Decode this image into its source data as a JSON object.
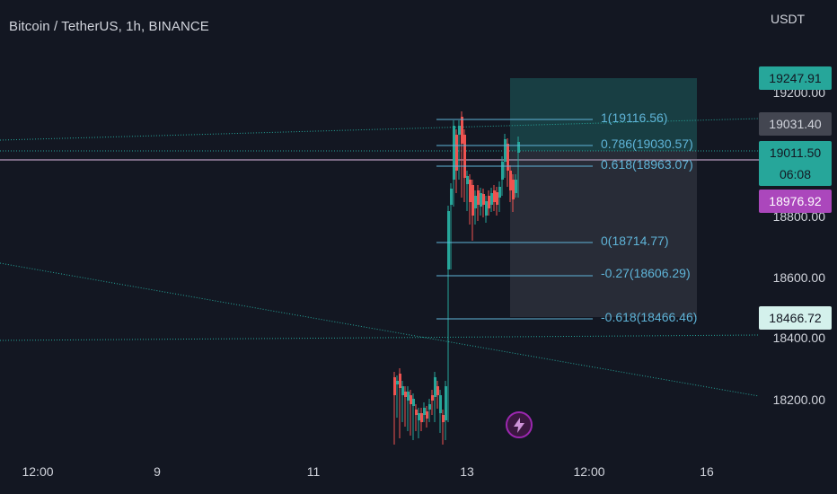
{
  "header": {
    "symbol_line": "Bitcoin / TetherUS, 1h, BINANCE"
  },
  "price_axis": {
    "currency": "USDT",
    "labels": [
      "19200.00",
      "18800.00",
      "18600.00",
      "18400.00",
      "18200.00"
    ]
  },
  "price_tags": [
    {
      "value": "19247.91",
      "color": "#26a69a",
      "text_color": "#131722"
    },
    {
      "value": "19031.40",
      "color": "#434651",
      "text_color": "#d1d4dc"
    },
    {
      "value": "19011.50",
      "color": "#26a69a",
      "text_color": "#131722"
    },
    {
      "value": "06:08",
      "color": "#26a69a",
      "text_color": "#131722"
    },
    {
      "value": "18976.92",
      "color": "#ab47bc",
      "text_color": "#ffffff"
    },
    {
      "value": "18466.72",
      "color": "#d4f1ec",
      "text_color": "#131722"
    }
  ],
  "time_axis": {
    "labels": [
      "12:00",
      "9",
      "11",
      "13",
      "12:00",
      "16"
    ]
  },
  "fib_levels": [
    {
      "label": "1(19116.56)",
      "price": 19116.56
    },
    {
      "label": "0.786(19030.57)",
      "price": 19030.57
    },
    {
      "label": "0.618(18963.07)",
      "price": 18963.07
    },
    {
      "label": "0(18714.77)",
      "price": 18714.77
    },
    {
      "label": "-0.27(18606.29)",
      "price": 18606.29
    },
    {
      "label": "-0.618(18466.46)",
      "price": 18466.46
    }
  ],
  "colors": {
    "background": "#131722",
    "up": "#26a69a",
    "down": "#ef5350",
    "fib": "#5fb4d8",
    "trendline": "#26a69a",
    "position_box": "#26a69a",
    "alert": "#9c27b0"
  },
  "icons": {
    "alert": "lightning-bolt-icon"
  }
}
